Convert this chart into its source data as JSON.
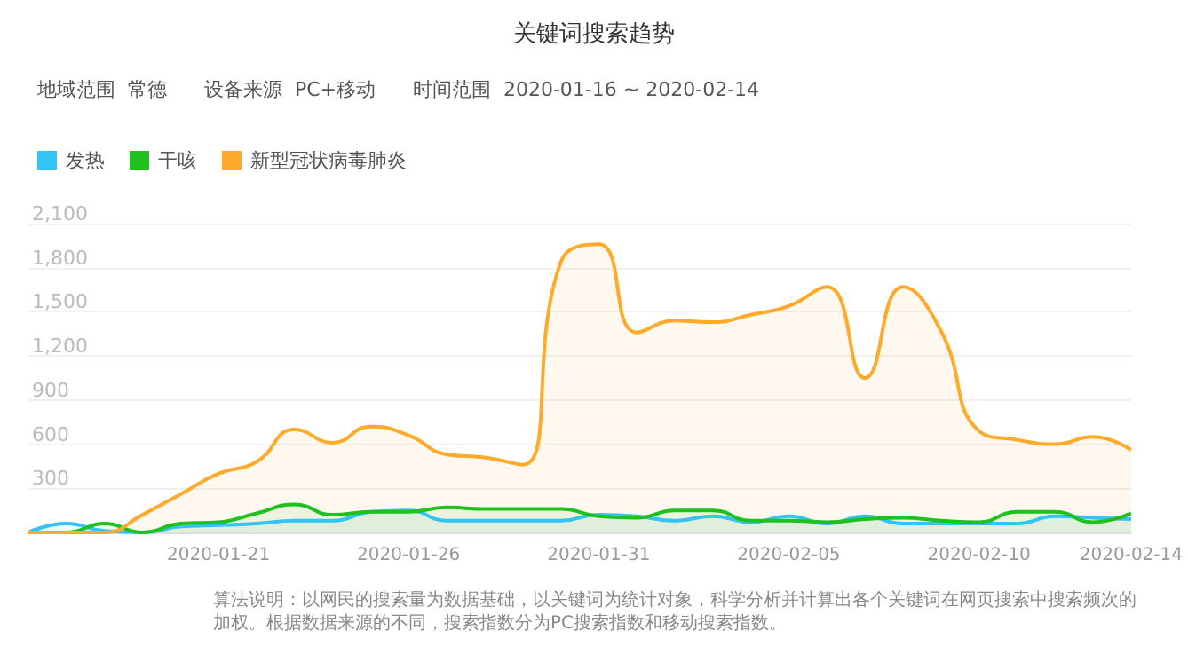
{
  "chart_data": {
    "type": "area",
    "title": "关键词搜索趋势",
    "subtitle": "地域范围  常德      设备来源  PC+移动      时间范围  2020-01-16 ~ 2020-02-14",
    "categories": [
      null,
      null,
      null,
      null,
      null,
      "2020-01-21",
      null,
      null,
      null,
      null,
      "2020-01-26",
      null,
      null,
      null,
      null,
      "2020-01-31",
      null,
      null,
      null,
      null,
      "2020-02-05",
      null,
      null,
      null,
      null,
      "2020-02-10",
      null,
      null,
      null,
      "2020-02-14"
    ],
    "series": [
      {
        "name": "发热",
        "color": "#33c3f5",
        "values": [
          0,
          60,
          10,
          0,
          40,
          50,
          60,
          80,
          80,
          140,
          150,
          80,
          80,
          80,
          80,
          120,
          110,
          80,
          110,
          70,
          110,
          60,
          110,
          60,
          60,
          60,
          60,
          110,
          100,
          90
        ]
      },
      {
        "name": "干咳",
        "color": "#1fc11f",
        "values": [
          0,
          0,
          60,
          0,
          60,
          70,
          130,
          190,
          120,
          140,
          140,
          170,
          160,
          160,
          160,
          110,
          100,
          150,
          150,
          80,
          80,
          70,
          90,
          100,
          80,
          70,
          140,
          140,
          70,
          130
        ]
      },
      {
        "name": "新型冠状病毒肺炎",
        "color": "#ffaa2b",
        "values": [
          0,
          0,
          0,
          120,
          260,
          400,
          480,
          700,
          610,
          720,
          660,
          530,
          510,
          460,
          1840,
          1960,
          1360,
          1440,
          1430,
          1480,
          1540,
          1670,
          1050,
          1670,
          1370,
          690,
          630,
          600,
          650,
          560
        ]
      }
    ],
    "ylim": [
      0,
      2100
    ],
    "yticks": [
      {
        "value": 0,
        "label": null
      },
      300,
      600,
      900,
      {
        "value": 1200,
        "label": "1,200"
      },
      {
        "value": 1500,
        "label": "1,500"
      },
      {
        "value": 1800,
        "label": "1,800"
      },
      {
        "value": 2100,
        "label": "2,100"
      }
    ],
    "grid": "y",
    "legend": "top left",
    "marker": "none",
    "line_style": "solid",
    "annotations": [
      "算法说明：以网民的搜索量为数据基础，以关键词为统计对象，科学分析并计算出各个关键词在网页搜索中搜索频次的加权。根据数据来源的不同，搜索指数分为PC搜索指数和移动搜索指数。"
    ]
  }
}
